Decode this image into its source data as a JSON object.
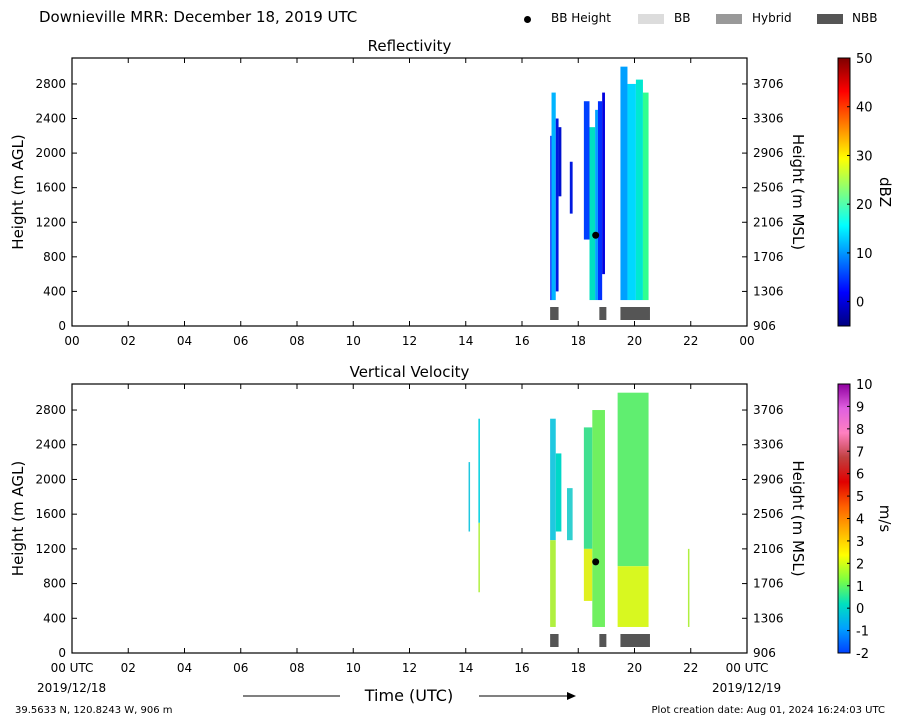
{
  "title": "Downieville MRR:  December 18, 2019 UTC",
  "legend": [
    {
      "label": "BB Height",
      "kind": "dot",
      "color": "#000000"
    },
    {
      "label": "BB",
      "kind": "box",
      "color": "#dcdcdc"
    },
    {
      "label": "Hybrid",
      "kind": "box",
      "color": "#999999"
    },
    {
      "label": "NBB",
      "kind": "box",
      "color": "#555555"
    }
  ],
  "footer": {
    "location": "39.5633 N, 120.8243 W, 906 m",
    "creation": "Plot creation date: Aug 01, 2024 16:24:03 UTC",
    "xlabel": "Time (UTC)",
    "start_date": "2019/12/18",
    "end_date": "2019/12/19"
  },
  "chart_data": [
    {
      "type": "heatmap",
      "title": "Reflectivity",
      "ylabel": "Height (m AGL)",
      "ylabel_right": "Height (m MSL)",
      "xlim": [
        0,
        24
      ],
      "ylim": [
        0,
        3100
      ],
      "xticks": [
        "00",
        "02",
        "04",
        "06",
        "08",
        "10",
        "12",
        "14",
        "16",
        "18",
        "20",
        "22",
        "00"
      ],
      "yticks": [
        "0",
        "400",
        "800",
        "1200",
        "1600",
        "2000",
        "2400",
        "2800"
      ],
      "yticks_right": [
        "906",
        "1306",
        "1706",
        "2106",
        "2506",
        "2906",
        "3306",
        "3706"
      ],
      "colorbar": {
        "label": "dBZ",
        "min": -5,
        "max": 50,
        "ticks": [
          "0",
          "10",
          "20",
          "30",
          "40",
          "50"
        ],
        "colors": [
          "#00007f",
          "#0000ff",
          "#007fff",
          "#00ffff",
          "#7fff7f",
          "#ffff00",
          "#ff7f00",
          "#ff0000",
          "#7f0000"
        ]
      },
      "data_columns": [
        {
          "t0": 17.0,
          "t1": 17.05,
          "h0": 300,
          "h1": 2200,
          "color": "#1a3cff"
        },
        {
          "t0": 17.05,
          "t1": 17.2,
          "h0": 300,
          "h1": 2700,
          "color": "#00b4ff"
        },
        {
          "t0": 17.2,
          "t1": 17.3,
          "h0": 400,
          "h1": 2400,
          "color": "#0018e0"
        },
        {
          "t0": 17.3,
          "t1": 17.4,
          "h0": 1500,
          "h1": 2300,
          "color": "#0010d0"
        },
        {
          "t0": 17.7,
          "t1": 17.8,
          "h0": 1300,
          "h1": 1900,
          "color": "#0018e0"
        },
        {
          "t0": 18.2,
          "t1": 18.4,
          "h0": 1000,
          "h1": 2600,
          "color": "#0040ff"
        },
        {
          "t0": 18.4,
          "t1": 18.6,
          "h0": 300,
          "h1": 2300,
          "color": "#00e0c0"
        },
        {
          "t0": 18.6,
          "t1": 18.7,
          "h0": 300,
          "h1": 2500,
          "color": "#00a0ff"
        },
        {
          "t0": 18.7,
          "t1": 18.85,
          "h0": 300,
          "h1": 2600,
          "color": "#0030ff"
        },
        {
          "t0": 18.85,
          "t1": 18.95,
          "h0": 600,
          "h1": 2700,
          "color": "#0000e0"
        },
        {
          "t0": 19.5,
          "t1": 19.75,
          "h0": 300,
          "h1": 3000,
          "color": "#00a0ff"
        },
        {
          "t0": 19.75,
          "t1": 20.05,
          "h0": 300,
          "h1": 2800,
          "color": "#00d8ff"
        },
        {
          "t0": 20.05,
          "t1": 20.3,
          "h0": 300,
          "h1": 2850,
          "color": "#00e8d0"
        },
        {
          "t0": 20.3,
          "t1": 20.5,
          "h0": 300,
          "h1": 2700,
          "color": "#30ff90"
        }
      ],
      "bb_height": [
        {
          "t": 18.62,
          "h": 1050
        }
      ],
      "bb_type": [
        {
          "t0": 17.0,
          "t1": 17.3,
          "type": "NBB"
        },
        {
          "t0": 18.75,
          "t1": 19.0,
          "type": "NBB"
        },
        {
          "t0": 19.5,
          "t1": 20.55,
          "type": "NBB"
        }
      ]
    },
    {
      "type": "heatmap",
      "title": "Vertical Velocity",
      "ylabel": "Height (m AGL)",
      "ylabel_right": "Height (m MSL)",
      "xlim": [
        0,
        24
      ],
      "ylim": [
        0,
        3100
      ],
      "xticks": [
        "00 UTC",
        "02",
        "04",
        "06",
        "08",
        "10",
        "12",
        "14",
        "16",
        "18",
        "20",
        "22",
        "00 UTC"
      ],
      "yticks": [
        "0",
        "400",
        "800",
        "1200",
        "1600",
        "2000",
        "2400",
        "2800"
      ],
      "yticks_right": [
        "906",
        "1306",
        "1706",
        "2106",
        "2506",
        "2906",
        "3306",
        "3706"
      ],
      "colorbar": {
        "label": "m/s",
        "min": -2,
        "max": 10,
        "ticks": [
          "-2",
          "-1",
          "0",
          "1",
          "2",
          "3",
          "4",
          "5",
          "6",
          "7",
          "8",
          "9",
          "10"
        ],
        "colors": [
          "#0040ff",
          "#00a0ff",
          "#00e0c0",
          "#7fff40",
          "#ffff00",
          "#ffb000",
          "#ff6000",
          "#e00000",
          "#c04040",
          "#ff80c0",
          "#e060e0",
          "#9000a0"
        ]
      },
      "data_columns": [
        {
          "t0": 14.1,
          "t1": 14.15,
          "h0": 1400,
          "h1": 2200,
          "color": "#20c8e0"
        },
        {
          "t0": 14.45,
          "t1": 14.5,
          "h0": 1500,
          "h1": 2700,
          "color": "#00d0e0"
        },
        {
          "t0": 14.45,
          "t1": 14.5,
          "h0": 700,
          "h1": 1500,
          "color": "#b0f040"
        },
        {
          "t0": 17.0,
          "t1": 17.2,
          "h0": 1300,
          "h1": 2700,
          "color": "#20c8e0"
        },
        {
          "t0": 17.0,
          "t1": 17.2,
          "h0": 300,
          "h1": 1300,
          "color": "#b0f040"
        },
        {
          "t0": 17.2,
          "t1": 17.4,
          "h0": 1400,
          "h1": 2300,
          "color": "#00d8c8"
        },
        {
          "t0": 17.6,
          "t1": 17.8,
          "h0": 1300,
          "h1": 1900,
          "color": "#30d0d0"
        },
        {
          "t0": 18.2,
          "t1": 18.5,
          "h0": 1200,
          "h1": 2600,
          "color": "#40e090"
        },
        {
          "t0": 18.2,
          "t1": 18.5,
          "h0": 600,
          "h1": 1200,
          "color": "#e0f020"
        },
        {
          "t0": 18.5,
          "t1": 18.95,
          "h0": 300,
          "h1": 2800,
          "color": "#70f060"
        },
        {
          "t0": 19.4,
          "t1": 20.5,
          "h0": 1000,
          "h1": 3000,
          "color": "#60ee70"
        },
        {
          "t0": 19.4,
          "t1": 20.5,
          "h0": 300,
          "h1": 1000,
          "color": "#d8f820"
        },
        {
          "t0": 21.9,
          "t1": 21.95,
          "h0": 300,
          "h1": 1200,
          "color": "#b0f040"
        }
      ],
      "bb_height": [
        {
          "t": 18.62,
          "h": 1050
        }
      ],
      "bb_type": [
        {
          "t0": 17.0,
          "t1": 17.3,
          "type": "NBB"
        },
        {
          "t0": 18.75,
          "t1": 19.0,
          "type": "NBB"
        },
        {
          "t0": 19.5,
          "t1": 20.55,
          "type": "NBB"
        }
      ]
    }
  ]
}
